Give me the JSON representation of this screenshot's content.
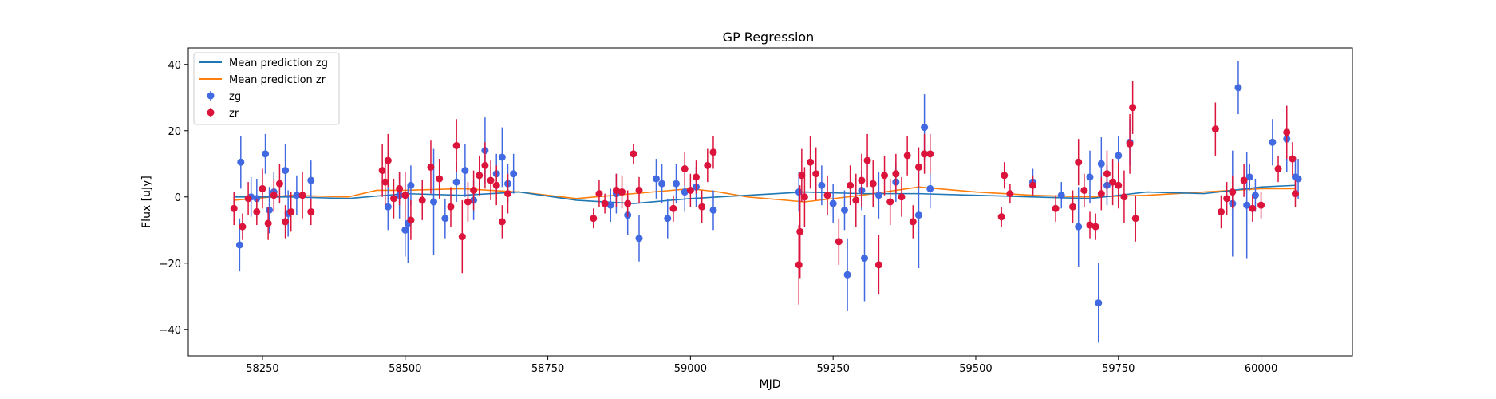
{
  "chart_data": {
    "type": "scatter",
    "title": "GP Regression",
    "xlabel": "MJD",
    "ylabel": "Flux [uJy]",
    "xlim": [
      58120,
      60160
    ],
    "ylim": [
      -48,
      45
    ],
    "xticks": [
      58250,
      58500,
      58750,
      59000,
      59250,
      59500,
      59750,
      60000
    ],
    "yticks": [
      -40,
      -20,
      0,
      20,
      40
    ],
    "legend_position": "top-left",
    "colors": {
      "zg_points": "#4169e1",
      "zr_points": "#dc143c",
      "zg_mean": "#1f77b4",
      "zr_mean": "#ff7f0e"
    },
    "legend": {
      "mean_zg": "Mean prediction zg",
      "mean_zr": "Mean prediction zr",
      "zg": "zg",
      "zr": "zr"
    },
    "series": [
      {
        "name": "Mean prediction zg",
        "kind": "line",
        "x": [
          58200,
          58300,
          58400,
          58500,
          58600,
          58700,
          58800,
          58900,
          59000,
          59100,
          59200,
          59300,
          59400,
          59500,
          59600,
          59700,
          59800,
          59900,
          60000,
          60060
        ],
        "y": [
          0.0,
          0.0,
          -0.5,
          1.0,
          0.5,
          1.5,
          -1.0,
          -2.0,
          -0.5,
          0.5,
          1.5,
          1.0,
          1.0,
          0.5,
          0.0,
          -0.5,
          1.5,
          1.0,
          3.0,
          3.5
        ]
      },
      {
        "name": "Mean prediction zr",
        "kind": "line",
        "x": [
          58200,
          58300,
          58400,
          58450,
          58500,
          58600,
          58700,
          58800,
          58900,
          59000,
          59050,
          59100,
          59200,
          59300,
          59400,
          59500,
          59600,
          59700,
          59800,
          59900,
          60000,
          60060
        ],
        "y": [
          -1.0,
          0.5,
          0.0,
          2.0,
          2.0,
          2.5,
          1.5,
          -0.5,
          1.0,
          2.5,
          1.5,
          0.0,
          -1.5,
          0.5,
          3.0,
          1.5,
          0.5,
          0.0,
          0.5,
          1.5,
          2.5,
          2.5
        ]
      },
      {
        "name": "zg",
        "kind": "errorbar",
        "x": [
          58210,
          58212,
          58230,
          58240,
          58255,
          58262,
          58270,
          58290,
          58295,
          58310,
          58335,
          58470,
          58490,
          58500,
          58505,
          58510,
          58550,
          58570,
          58590,
          58605,
          58620,
          58640,
          58660,
          58670,
          58680,
          58690,
          58860,
          58870,
          58890,
          58910,
          58940,
          58950,
          58960,
          58975,
          58990,
          59010,
          59040,
          59190,
          59230,
          59250,
          59270,
          59275,
          59300,
          59305,
          59330,
          59360,
          59400,
          59410,
          59420,
          59600,
          59650,
          59680,
          59700,
          59715,
          59720,
          59730,
          59750,
          59770,
          59950,
          59960,
          59975,
          59980,
          59990,
          60020,
          60045,
          60060,
          60065
        ],
        "y": [
          -14.5,
          10.5,
          0.0,
          -0.5,
          13.0,
          -4.0,
          1.5,
          8.0,
          -5.0,
          0.5,
          5.0,
          -3.0,
          0.5,
          -10.0,
          -8.0,
          3.5,
          -1.5,
          -6.5,
          4.5,
          8.0,
          -1.0,
          14.0,
          7.0,
          12.0,
          4.0,
          7.0,
          -2.5,
          1.0,
          -5.5,
          -12.5,
          5.5,
          4.0,
          -6.5,
          4.0,
          1.5,
          3.0,
          -4.0,
          1.5,
          3.5,
          -2.0,
          -4.0,
          -23.5,
          2.0,
          -18.5,
          0.5,
          4.5,
          -5.5,
          21.0,
          2.5,
          4.5,
          0.5,
          -9.0,
          6.0,
          -32.0,
          10.0,
          3.5,
          12.5,
          16.5,
          -2.0,
          33.0,
          -2.5,
          6.0,
          0.5,
          16.5,
          17.5,
          6.0,
          5.5
        ],
        "err": [
          8,
          8,
          6,
          6,
          6,
          7,
          6,
          8,
          7,
          6,
          6,
          7,
          7,
          8,
          12,
          6,
          16,
          6,
          6,
          8,
          6,
          10,
          6,
          9,
          6,
          6,
          5,
          6,
          6,
          7,
          6,
          6,
          6,
          6,
          6,
          6,
          6,
          6,
          6,
          6,
          6,
          11,
          6,
          13,
          7,
          6,
          16,
          10,
          6,
          4,
          4,
          12,
          8,
          12,
          8,
          6,
          6,
          7,
          16,
          8,
          16,
          4,
          5,
          7,
          10,
          6,
          6
        ]
      },
      {
        "name": "zr",
        "kind": "errorbar",
        "x": [
          58200,
          58215,
          58225,
          58240,
          58250,
          58260,
          58270,
          58280,
          58290,
          58300,
          58320,
          58335,
          58460,
          58465,
          58470,
          58480,
          58490,
          58500,
          58510,
          58530,
          58545,
          58560,
          58580,
          58590,
          58600,
          58610,
          58620,
          58630,
          58640,
          58650,
          58660,
          58670,
          58680,
          58830,
          58840,
          58850,
          58870,
          58880,
          58890,
          58900,
          58910,
          58970,
          58990,
          59000,
          59010,
          59020,
          59030,
          59040,
          59190,
          59192,
          59195,
          59200,
          59210,
          59220,
          59240,
          59260,
          59280,
          59290,
          59300,
          59310,
          59320,
          59330,
          59340,
          59350,
          59360,
          59370,
          59380,
          59390,
          59400,
          59410,
          59420,
          59545,
          59550,
          59560,
          59600,
          59640,
          59670,
          59680,
          59690,
          59700,
          59710,
          59720,
          59730,
          59740,
          59750,
          59760,
          59770,
          59775,
          59780,
          59920,
          59930,
          59940,
          59950,
          59970,
          59985,
          60000,
          60030,
          60045,
          60055,
          60060
        ],
        "y": [
          -3.5,
          -9.0,
          -0.5,
          -4.5,
          2.5,
          -8.0,
          0.5,
          4.0,
          -7.5,
          -4.5,
          0.5,
          -4.5,
          8.0,
          4.5,
          11.0,
          -0.5,
          2.5,
          0.5,
          -7.0,
          -1.0,
          9.0,
          5.5,
          -3.0,
          15.5,
          -12.0,
          -1.5,
          2.0,
          6.5,
          9.5,
          5.0,
          3.5,
          -7.5,
          1.0,
          -6.5,
          1.0,
          -2.0,
          2.0,
          1.5,
          -2.0,
          13.0,
          2.0,
          -3.5,
          8.5,
          2.0,
          6.0,
          -3.0,
          9.5,
          13.5,
          -20.5,
          -10.5,
          6.5,
          0.0,
          10.5,
          7.0,
          0.5,
          -13.5,
          3.5,
          -1.0,
          5.0,
          11.0,
          4.0,
          -20.5,
          6.5,
          -1.5,
          7.0,
          0.0,
          12.5,
          -7.5,
          9.0,
          13.0,
          13.0,
          -6.0,
          6.5,
          1.0,
          3.5,
          -3.5,
          -3.0,
          10.5,
          2.0,
          -8.5,
          -9.0,
          1.0,
          7.0,
          4.5,
          3.5,
          0.0,
          16.0,
          27.0,
          -6.5,
          20.5,
          -4.5,
          -0.5,
          1.5,
          5.0,
          -3.5,
          -2.5,
          8.5,
          19.5,
          11.5,
          1.0
        ],
        "err": [
          5,
          4,
          5,
          4,
          6,
          5,
          5,
          6,
          5,
          6,
          7,
          4,
          8,
          7,
          8,
          6,
          5,
          7,
          6,
          6,
          8,
          6,
          6,
          8,
          11,
          6,
          6,
          6,
          7,
          6,
          6,
          5,
          6,
          3,
          4,
          3,
          5,
          5,
          4,
          3,
          4,
          4,
          5,
          5,
          5,
          5,
          5,
          5,
          12,
          14,
          8,
          9,
          8,
          8,
          6,
          7,
          6,
          8,
          8,
          8,
          7,
          9,
          6,
          7,
          6,
          6,
          6,
          5,
          6,
          6,
          6,
          3,
          4,
          3,
          3,
          4,
          5,
          7,
          5,
          4,
          4,
          5,
          7,
          7,
          7,
          8,
          9,
          8,
          7,
          8,
          5,
          5,
          5,
          5,
          4,
          4,
          4,
          8,
          5,
          4
        ]
      }
    ]
  }
}
